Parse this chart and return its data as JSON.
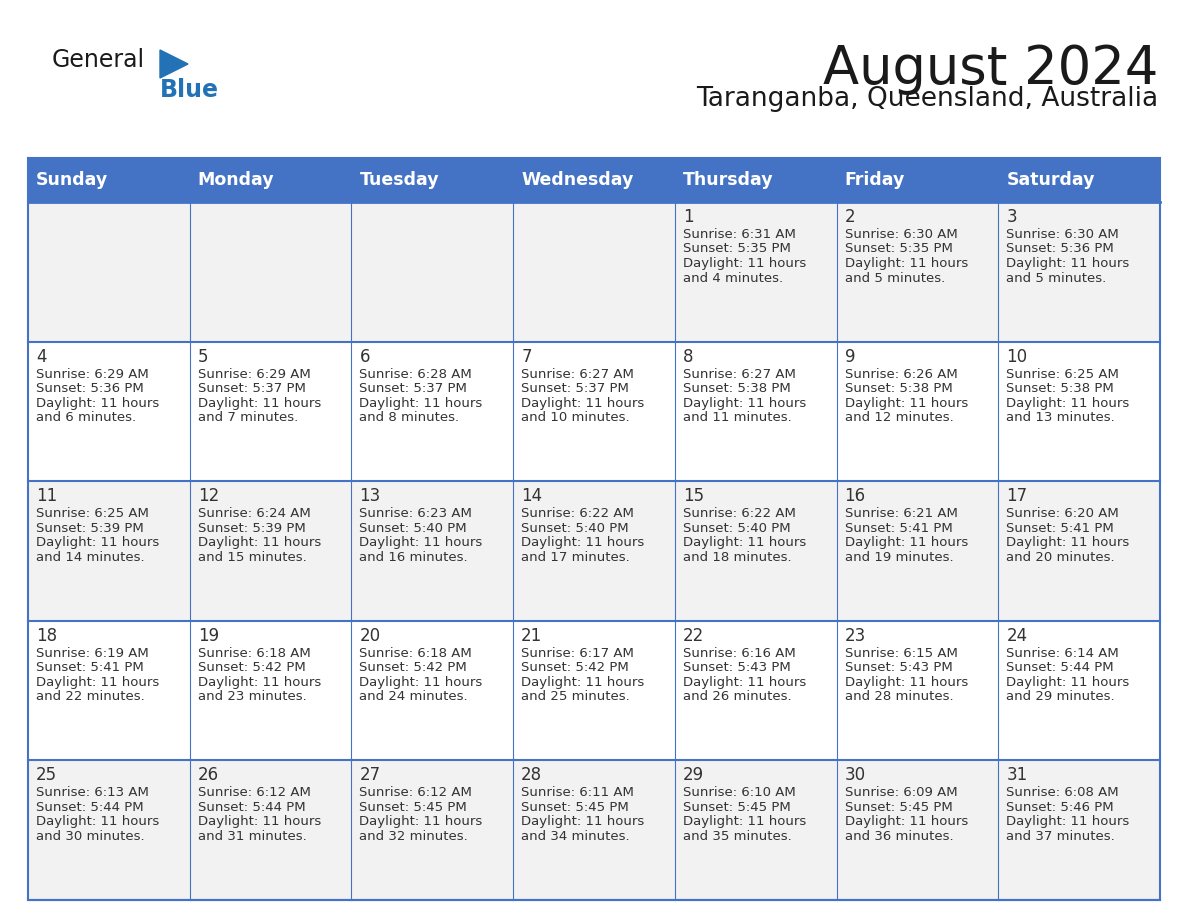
{
  "title": "August 2024",
  "subtitle": "Taranganba, Queensland, Australia",
  "header_bg_color": "#4472C4",
  "header_text_color": "#FFFFFF",
  "day_names": [
    "Sunday",
    "Monday",
    "Tuesday",
    "Wednesday",
    "Thursday",
    "Friday",
    "Saturday"
  ],
  "row_bg_even": "#F2F2F2",
  "row_bg_odd": "#FFFFFF",
  "cell_border_color": "#4472C4",
  "week_border_color": "#4472C4",
  "date_text_color": "#333333",
  "info_text_color": "#333333",
  "title_color": "#1a1a1a",
  "subtitle_color": "#1a1a1a",
  "generalblue_black_color": "#1a1a1a",
  "generalblue_blue_color": "#2272B5",
  "weeks": [
    {
      "days": [
        {
          "date": "",
          "sunrise": "",
          "sunset": "",
          "daylight": ""
        },
        {
          "date": "",
          "sunrise": "",
          "sunset": "",
          "daylight": ""
        },
        {
          "date": "",
          "sunrise": "",
          "sunset": "",
          "daylight": ""
        },
        {
          "date": "",
          "sunrise": "",
          "sunset": "",
          "daylight": ""
        },
        {
          "date": "1",
          "sunrise": "6:31 AM",
          "sunset": "5:35 PM",
          "daylight": "11 hours and 4 minutes."
        },
        {
          "date": "2",
          "sunrise": "6:30 AM",
          "sunset": "5:35 PM",
          "daylight": "11 hours and 5 minutes."
        },
        {
          "date": "3",
          "sunrise": "6:30 AM",
          "sunset": "5:36 PM",
          "daylight": "11 hours and 5 minutes."
        }
      ]
    },
    {
      "days": [
        {
          "date": "4",
          "sunrise": "6:29 AM",
          "sunset": "5:36 PM",
          "daylight": "11 hours and 6 minutes."
        },
        {
          "date": "5",
          "sunrise": "6:29 AM",
          "sunset": "5:37 PM",
          "daylight": "11 hours and 7 minutes."
        },
        {
          "date": "6",
          "sunrise": "6:28 AM",
          "sunset": "5:37 PM",
          "daylight": "11 hours and 8 minutes."
        },
        {
          "date": "7",
          "sunrise": "6:27 AM",
          "sunset": "5:37 PM",
          "daylight": "11 hours and 10 minutes."
        },
        {
          "date": "8",
          "sunrise": "6:27 AM",
          "sunset": "5:38 PM",
          "daylight": "11 hours and 11 minutes."
        },
        {
          "date": "9",
          "sunrise": "6:26 AM",
          "sunset": "5:38 PM",
          "daylight": "11 hours and 12 minutes."
        },
        {
          "date": "10",
          "sunrise": "6:25 AM",
          "sunset": "5:38 PM",
          "daylight": "11 hours and 13 minutes."
        }
      ]
    },
    {
      "days": [
        {
          "date": "11",
          "sunrise": "6:25 AM",
          "sunset": "5:39 PM",
          "daylight": "11 hours and 14 minutes."
        },
        {
          "date": "12",
          "sunrise": "6:24 AM",
          "sunset": "5:39 PM",
          "daylight": "11 hours and 15 minutes."
        },
        {
          "date": "13",
          "sunrise": "6:23 AM",
          "sunset": "5:40 PM",
          "daylight": "11 hours and 16 minutes."
        },
        {
          "date": "14",
          "sunrise": "6:22 AM",
          "sunset": "5:40 PM",
          "daylight": "11 hours and 17 minutes."
        },
        {
          "date": "15",
          "sunrise": "6:22 AM",
          "sunset": "5:40 PM",
          "daylight": "11 hours and 18 minutes."
        },
        {
          "date": "16",
          "sunrise": "6:21 AM",
          "sunset": "5:41 PM",
          "daylight": "11 hours and 19 minutes."
        },
        {
          "date": "17",
          "sunrise": "6:20 AM",
          "sunset": "5:41 PM",
          "daylight": "11 hours and 20 minutes."
        }
      ]
    },
    {
      "days": [
        {
          "date": "18",
          "sunrise": "6:19 AM",
          "sunset": "5:41 PM",
          "daylight": "11 hours and 22 minutes."
        },
        {
          "date": "19",
          "sunrise": "6:18 AM",
          "sunset": "5:42 PM",
          "daylight": "11 hours and 23 minutes."
        },
        {
          "date": "20",
          "sunrise": "6:18 AM",
          "sunset": "5:42 PM",
          "daylight": "11 hours and 24 minutes."
        },
        {
          "date": "21",
          "sunrise": "6:17 AM",
          "sunset": "5:42 PM",
          "daylight": "11 hours and 25 minutes."
        },
        {
          "date": "22",
          "sunrise": "6:16 AM",
          "sunset": "5:43 PM",
          "daylight": "11 hours and 26 minutes."
        },
        {
          "date": "23",
          "sunrise": "6:15 AM",
          "sunset": "5:43 PM",
          "daylight": "11 hours and 28 minutes."
        },
        {
          "date": "24",
          "sunrise": "6:14 AM",
          "sunset": "5:44 PM",
          "daylight": "11 hours and 29 minutes."
        }
      ]
    },
    {
      "days": [
        {
          "date": "25",
          "sunrise": "6:13 AM",
          "sunset": "5:44 PM",
          "daylight": "11 hours and 30 minutes."
        },
        {
          "date": "26",
          "sunrise": "6:12 AM",
          "sunset": "5:44 PM",
          "daylight": "11 hours and 31 minutes."
        },
        {
          "date": "27",
          "sunrise": "6:12 AM",
          "sunset": "5:45 PM",
          "daylight": "11 hours and 32 minutes."
        },
        {
          "date": "28",
          "sunrise": "6:11 AM",
          "sunset": "5:45 PM",
          "daylight": "11 hours and 34 minutes."
        },
        {
          "date": "29",
          "sunrise": "6:10 AM",
          "sunset": "5:45 PM",
          "daylight": "11 hours and 35 minutes."
        },
        {
          "date": "30",
          "sunrise": "6:09 AM",
          "sunset": "5:45 PM",
          "daylight": "11 hours and 36 minutes."
        },
        {
          "date": "31",
          "sunrise": "6:08 AM",
          "sunset": "5:46 PM",
          "daylight": "11 hours and 37 minutes."
        }
      ]
    }
  ]
}
